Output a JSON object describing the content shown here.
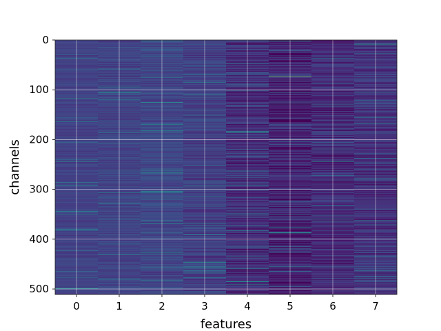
{
  "chart_data": {
    "type": "heatmap",
    "title": "",
    "xlabel": "features",
    "ylabel": "channels",
    "x_categories": [
      "0",
      "1",
      "2",
      "3",
      "4",
      "5",
      "6",
      "7"
    ],
    "y_ticks": [
      0,
      100,
      200,
      300,
      400,
      500
    ],
    "y_range": [
      0,
      511
    ],
    "y_inverted": true,
    "n_channels": 512,
    "grid": true,
    "colormap": "viridis",
    "colors": {
      "low": "#440154",
      "mid": "#31688e",
      "teal": "#21918c",
      "high": "#fde725",
      "grid": "#ffffff"
    },
    "column_means": [
      0.24,
      0.25,
      0.26,
      0.23,
      0.16,
      0.12,
      0.15,
      0.18
    ],
    "column_spread": [
      0.05,
      0.07,
      0.08,
      0.1,
      0.13,
      0.15,
      0.13,
      0.13
    ],
    "highlights": [
      {
        "feature": 5,
        "channel": 73,
        "value": 0.85
      },
      {
        "feature": 4,
        "channel": 183,
        "value": 0.65
      },
      {
        "feature": 1,
        "channel": 261,
        "value": 0.55
      },
      {
        "feature": 7,
        "channel": 8,
        "value": 0.7
      },
      {
        "feature": 5,
        "channel": 387,
        "value": 0.6
      },
      {
        "feature": 7,
        "channel": 363,
        "value": 0.6
      },
      {
        "feature": 3,
        "channel": 447,
        "value": 0.6
      },
      {
        "feature": 4,
        "channel": 460,
        "value": 0.55
      }
    ]
  }
}
